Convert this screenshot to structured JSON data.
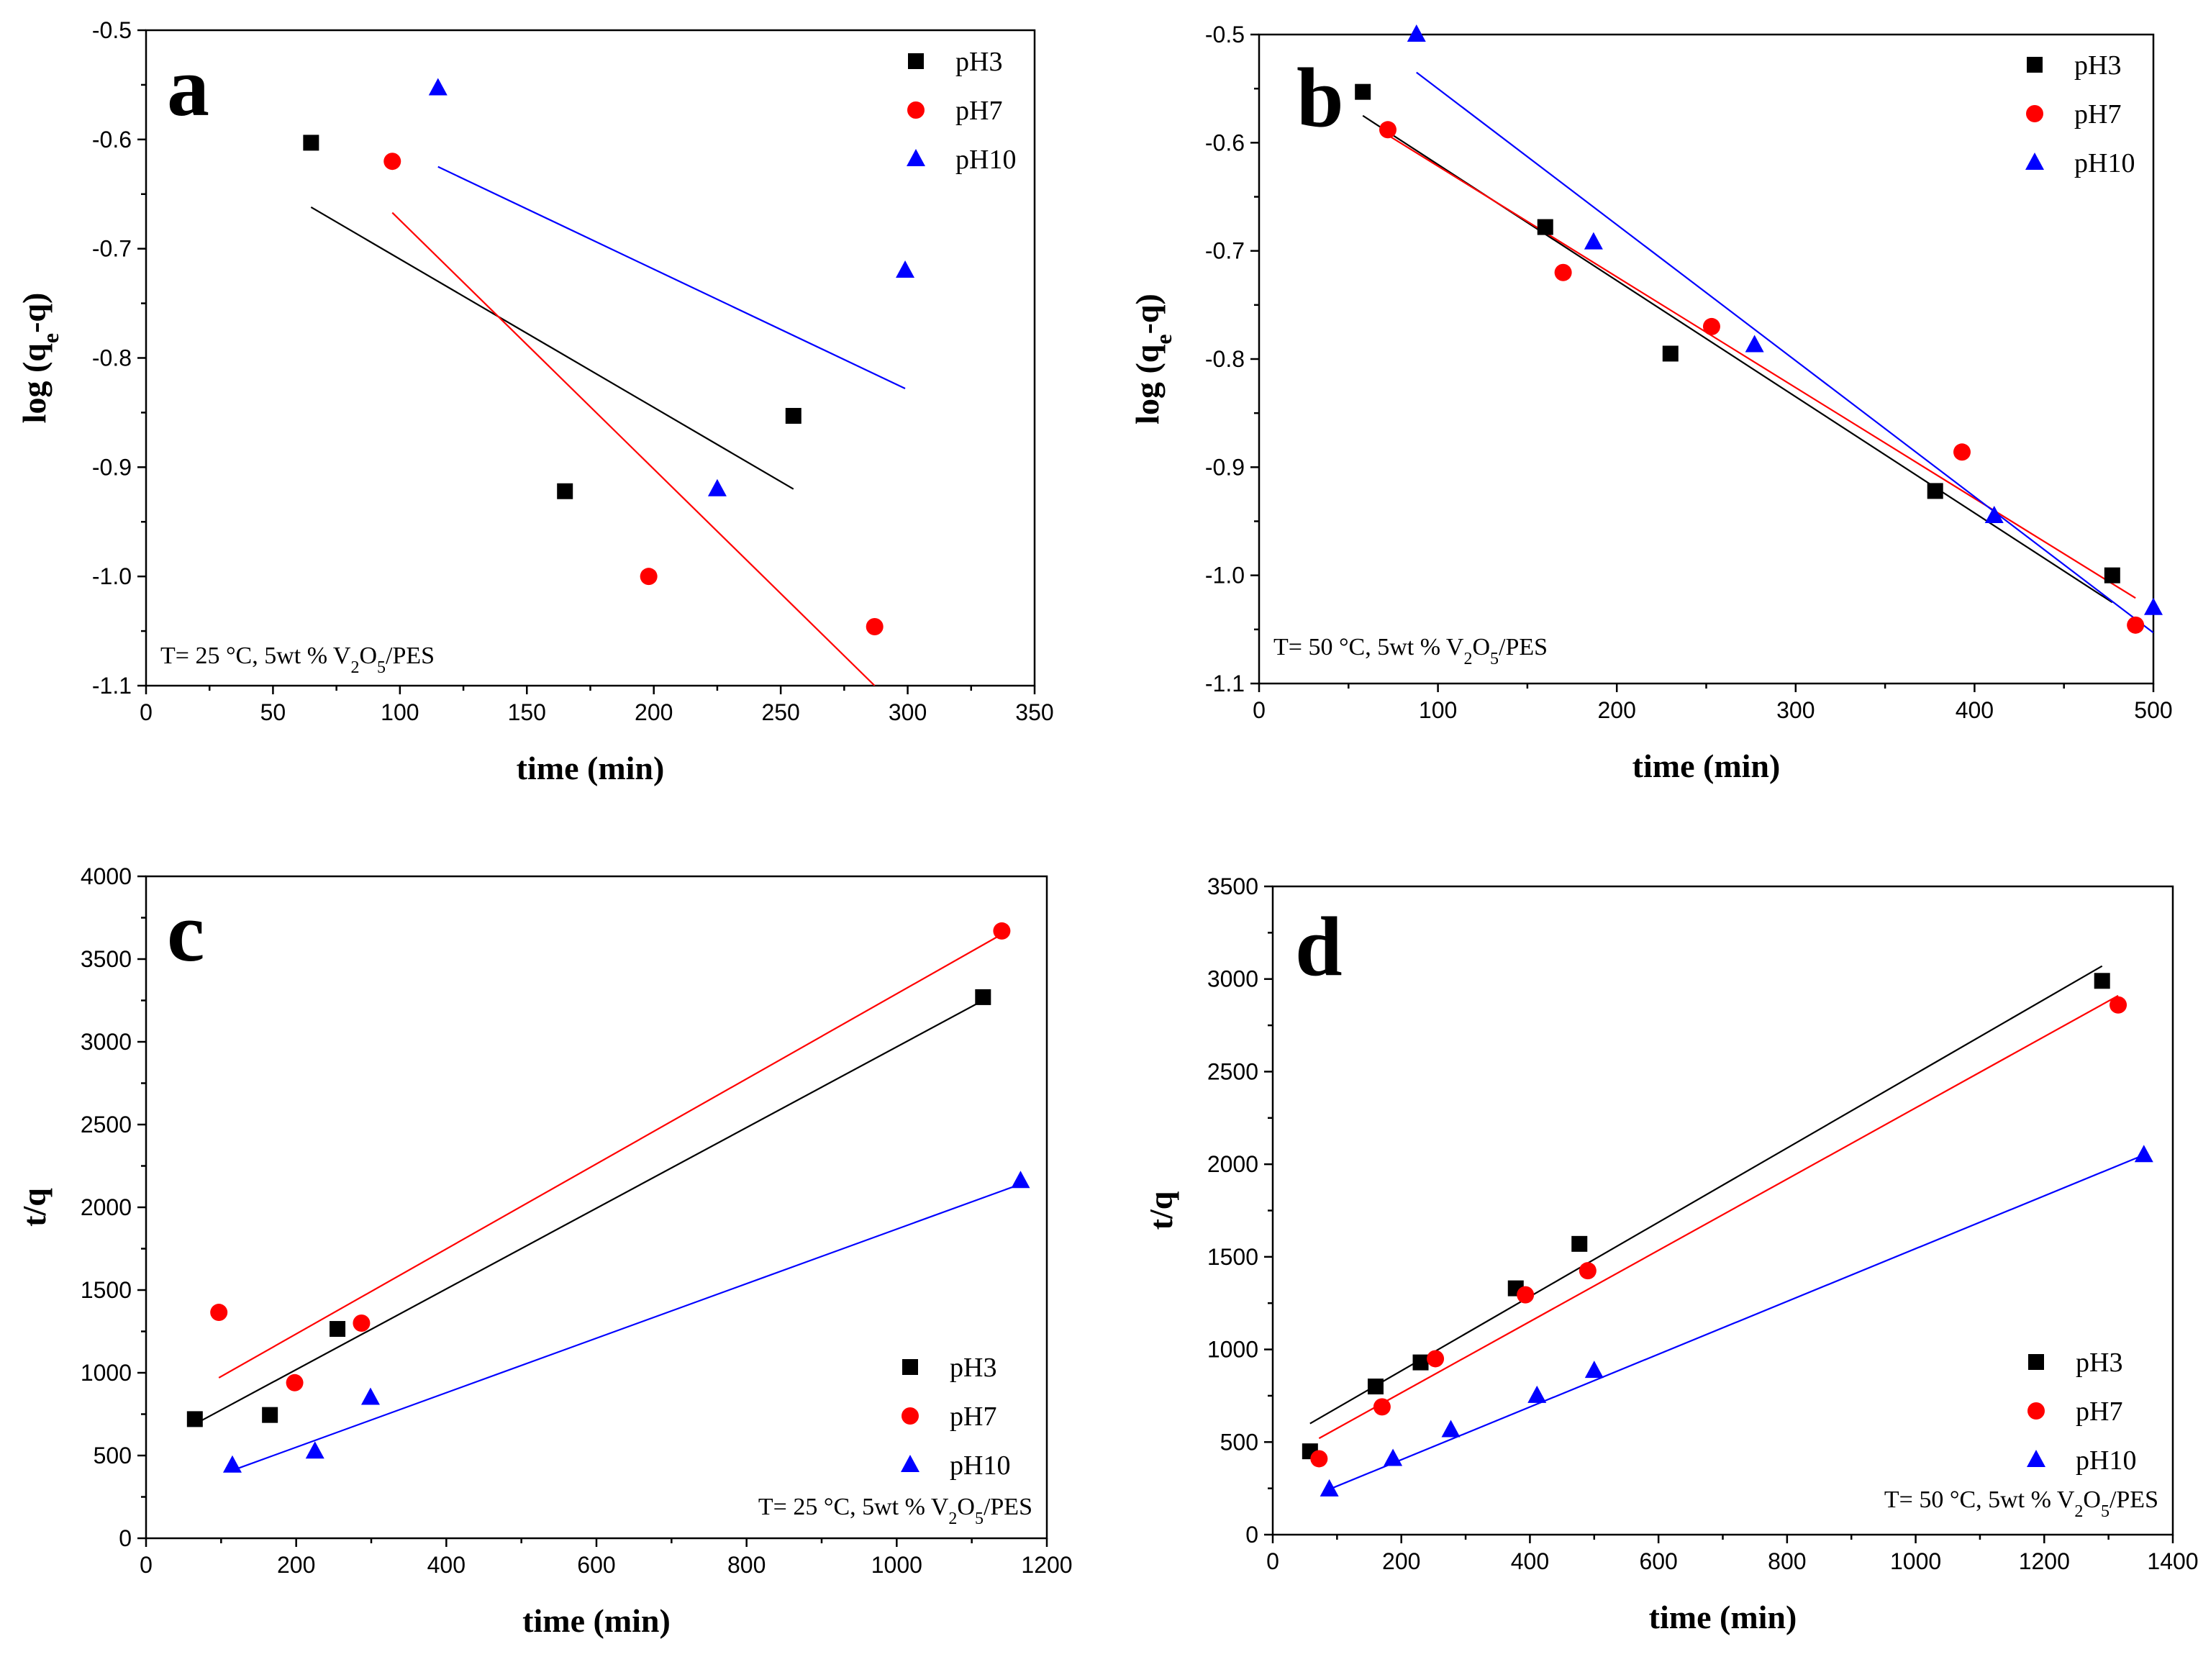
{
  "chart_data": [
    {
      "panel": "a",
      "type": "scatter",
      "xlabel": "time (min)",
      "ylabel": "log (q",
      "ylabel_sub": "e",
      "ylabel_suffix": "-q)",
      "xlim": [
        0,
        350
      ],
      "ylim": [
        -1.1,
        -0.5
      ],
      "xticks": [
        0,
        50,
        100,
        150,
        200,
        250,
        300,
        350
      ],
      "yticks": [
        -1.1,
        -1.0,
        -0.9,
        -0.8,
        -0.7,
        -0.6,
        -0.5
      ],
      "ytick_labels": [
        "-1.1",
        "-1.0",
        "-0.9",
        "-0.8",
        "-0.7",
        "-0.6",
        "-0.5"
      ],
      "legend_position": "top-right",
      "annotation": {
        "pre": "T= 25 °C, 5wt % V",
        "sub1": "2",
        "mid": "O",
        "sub2": "5",
        "post": "/PES",
        "position": "bottom-left"
      },
      "series": [
        {
          "name": "pH3",
          "color": "#000000",
          "marker": "square",
          "x": [
            65,
            165,
            255
          ],
          "y": [
            -0.603,
            -0.922,
            -0.853
          ],
          "fit": [
            [
              65,
              -0.662
            ],
            [
              255,
              -0.92
            ]
          ]
        },
        {
          "name": "pH7",
          "color": "#ff0000",
          "marker": "circle",
          "x": [
            97,
            198,
            287
          ],
          "y": [
            -0.62,
            -1.0,
            -1.046
          ],
          "fit": [
            [
              97,
              -0.667
            ],
            [
              287,
              -1.1
            ]
          ]
        },
        {
          "name": "pH10",
          "color": "#0000ff",
          "marker": "triangle",
          "x": [
            115,
            225,
            299
          ],
          "y": [
            -0.553,
            -0.92,
            -0.72
          ],
          "fit": [
            [
              115,
              -0.625
            ],
            [
              299,
              -0.828
            ]
          ]
        }
      ]
    },
    {
      "panel": "b",
      "type": "scatter",
      "xlabel": "time (min)",
      "ylabel": "log (q",
      "ylabel_sub": "e",
      "ylabel_suffix": "-q)",
      "xlim": [
        0,
        500
      ],
      "ylim": [
        -1.1,
        -0.5
      ],
      "xticks": [
        0,
        100,
        200,
        300,
        400,
        500
      ],
      "yticks": [
        -1.1,
        -1.0,
        -0.9,
        -0.8,
        -0.7,
        -0.6,
        -0.5
      ],
      "ytick_labels": [
        "-1.1",
        "-1.0",
        "-0.9",
        "-0.8",
        "-0.7",
        "-0.6",
        "-0.5"
      ],
      "legend_position": "top-right",
      "annotation": {
        "pre": "T= 50 °C, 5wt % V",
        "sub1": "2",
        "mid": "O",
        "sub2": "5",
        "post": "/PES",
        "position": "bottom-left"
      },
      "series": [
        {
          "name": "pH3",
          "color": "#000000",
          "marker": "square",
          "x": [
            58,
            160,
            230,
            378,
            477
          ],
          "y": [
            -0.553,
            -0.678,
            -0.795,
            -0.922,
            -1.0
          ],
          "fit": [
            [
              58,
              -0.575
            ],
            [
              477,
              -1.025
            ]
          ]
        },
        {
          "name": "pH7",
          "color": "#ff0000",
          "marker": "circle",
          "x": [
            72,
            170,
            253,
            393,
            490
          ],
          "y": [
            -0.588,
            -0.72,
            -0.77,
            -0.886,
            -1.046
          ],
          "fit": [
            [
              72,
              -0.593
            ],
            [
              490,
              -1.021
            ]
          ]
        },
        {
          "name": "pH10",
          "color": "#0000ff",
          "marker": "triangle",
          "x": [
            88,
            187,
            277,
            411,
            500
          ],
          "y": [
            -0.5,
            -0.692,
            -0.787,
            -0.945,
            -1.03
          ],
          "fit": [
            [
              88,
              -0.535
            ],
            [
              500,
              -1.053
            ]
          ]
        }
      ]
    },
    {
      "panel": "c",
      "type": "scatter",
      "xlabel": "time (min)",
      "ylabel": "t/q",
      "ylabel_sub": "",
      "ylabel_suffix": "",
      "xlim": [
        0,
        1200
      ],
      "ylim": [
        0,
        4000
      ],
      "xticks": [
        0,
        200,
        400,
        600,
        800,
        1000,
        1200
      ],
      "yticks": [
        0,
        500,
        1000,
        1500,
        2000,
        2500,
        3000,
        3500,
        4000
      ],
      "ytick_labels": [
        "0",
        "500",
        "1000",
        "1500",
        "2000",
        "2500",
        "3000",
        "3500",
        "4000"
      ],
      "legend_position": "bottom-right",
      "annotation": {
        "pre": "T= 25 °C, 5wt % V",
        "sub1": "2",
        "mid": "O",
        "sub2": "5",
        "post": "/PES",
        "position": "bottom-right"
      },
      "series": [
        {
          "name": "pH3",
          "color": "#000000",
          "marker": "square",
          "x": [
            65,
            165,
            255,
            1115
          ],
          "y": [
            720,
            745,
            1265,
            3270
          ],
          "fit": [
            [
              65,
              690
            ],
            [
              1115,
              3250
            ]
          ]
        },
        {
          "name": "pH7",
          "color": "#ff0000",
          "marker": "circle",
          "x": [
            97,
            198,
            287,
            1140
          ],
          "y": [
            1365,
            940,
            1300,
            3670
          ],
          "fit": [
            [
              97,
              970
            ],
            [
              1140,
              3650
            ]
          ]
        },
        {
          "name": "pH10",
          "color": "#0000ff",
          "marker": "triangle",
          "x": [
            115,
            225,
            299,
            1165
          ],
          "y": [
            440,
            525,
            850,
            2160
          ],
          "fit": [
            [
              115,
              410
            ],
            [
              1165,
              2140
            ]
          ]
        }
      ]
    },
    {
      "panel": "d",
      "type": "scatter",
      "xlabel": "time (min)",
      "ylabel": "t/q",
      "ylabel_sub": "",
      "ylabel_suffix": "",
      "xlim": [
        0,
        1400
      ],
      "ylim": [
        0,
        3500
      ],
      "xticks": [
        0,
        200,
        400,
        600,
        800,
        1000,
        1200,
        1400
      ],
      "yticks": [
        0,
        500,
        1000,
        1500,
        2000,
        2500,
        3000,
        3500
      ],
      "ytick_labels": [
        "0",
        "500",
        "1000",
        "1500",
        "2000",
        "2500",
        "3000",
        "3500"
      ],
      "legend_position": "bottom-right",
      "annotation": {
        "pre": "T= 50 °C, 5wt % V",
        "sub1": "2",
        "mid": "O",
        "sub2": "5",
        "post": "/PES",
        "position": "bottom-right"
      },
      "series": [
        {
          "name": "pH3",
          "color": "#000000",
          "marker": "square",
          "x": [
            58,
            160,
            230,
            378,
            477,
            1290
          ],
          "y": [
            450,
            800,
            930,
            1330,
            1570,
            2990
          ],
          "fit": [
            [
              58,
              600
            ],
            [
              1290,
              3070
            ]
          ]
        },
        {
          "name": "pH7",
          "color": "#ff0000",
          "marker": "circle",
          "x": [
            72,
            170,
            253,
            393,
            490,
            1315
          ],
          "y": [
            410,
            690,
            950,
            1295,
            1425,
            2860
          ],
          "fit": [
            [
              72,
              520
            ],
            [
              1315,
              2910
            ]
          ]
        },
        {
          "name": "pH10",
          "color": "#0000ff",
          "marker": "triangle",
          "x": [
            88,
            187,
            277,
            411,
            500,
            1355
          ],
          "y": [
            245,
            410,
            565,
            750,
            885,
            2050
          ],
          "fit": [
            [
              88,
              245
            ],
            [
              1355,
              2050
            ]
          ]
        }
      ]
    }
  ]
}
